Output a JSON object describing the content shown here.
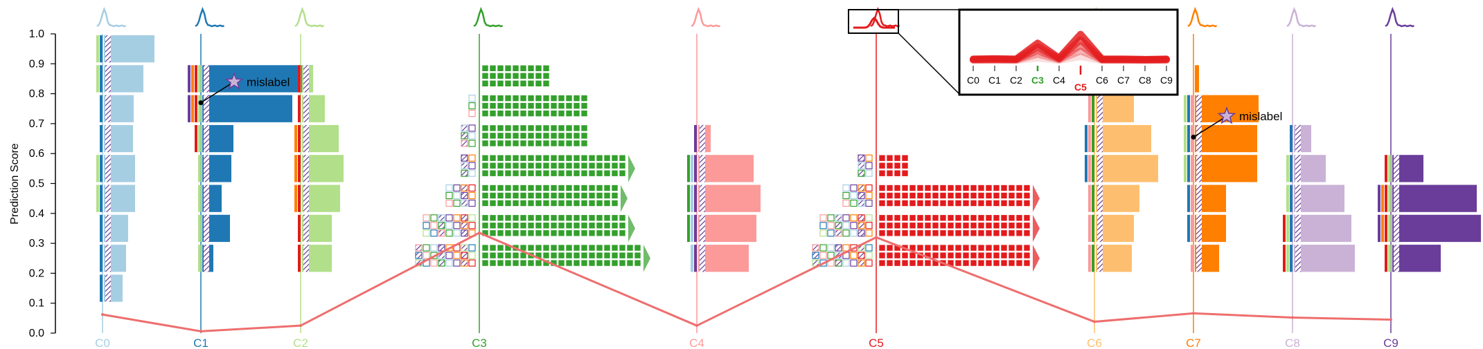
{
  "chart_data": {
    "type": "bar",
    "ylabel": "Prediction Score",
    "ylim": [
      0,
      1
    ],
    "yticks": [
      "0.0",
      "0.1",
      "0.2",
      "0.3",
      "0.4",
      "0.5",
      "0.6",
      "0.7",
      "0.8",
      "0.9",
      "1.0"
    ],
    "bins": [
      0.1,
      0.2,
      0.3,
      0.4,
      0.5,
      0.6,
      0.7,
      0.8,
      0.9
    ],
    "classes": [
      {
        "label": "C0",
        "color": "#a6cee3",
        "bins": [
          0.15,
          0.25,
          0.35,
          0.45,
          0.55,
          0.65,
          0.75,
          0.85,
          0.95
        ],
        "values": [
          27,
          32,
          35,
          45,
          45,
          42,
          43,
          57,
          73
        ],
        "line_score": 0.062
      },
      {
        "label": "C1",
        "color": "#1f78b4",
        "bins": [
          0.25,
          0.35,
          0.45,
          0.55,
          0.65,
          0.75,
          0.85
        ],
        "values": [
          16,
          40,
          28,
          42,
          45,
          130,
          160
        ],
        "line_score": 0.006
      },
      {
        "label": "C2",
        "color": "#b2df8a",
        "bins": [
          0.25,
          0.35,
          0.45,
          0.55,
          0.65,
          0.75,
          0.85
        ],
        "values": [
          43,
          43,
          55,
          60,
          53,
          33,
          16
        ],
        "line_score": 0.025
      },
      {
        "label": "C3",
        "color": "#33a02c",
        "bins": [
          0.25,
          0.35,
          0.45,
          0.55,
          0.65,
          0.75,
          0.85
        ],
        "values": [
          230,
          210,
          200,
          205,
          155,
          155,
          100
        ],
        "line_score": 0.335
      },
      {
        "label": "C4",
        "color": "#fb9a99",
        "bins": [
          0.25,
          0.35,
          0.45,
          0.55,
          0.65
        ],
        "values": [
          73,
          84,
          90,
          80,
          18
        ],
        "line_score": 0.025
      },
      {
        "label": "C5",
        "color": "#e31a1c",
        "bins": [
          0.25,
          0.35,
          0.45,
          0.55
        ],
        "values": [
          215,
          215,
          215,
          48
        ],
        "line_score": 0.32
      },
      {
        "label": "C6",
        "color": "#fdbf6f",
        "bins": [
          0.25,
          0.35,
          0.45,
          0.55,
          0.65,
          0.75
        ],
        "values": [
          52,
          55,
          63,
          90,
          80,
          55
        ],
        "line_score": 0.038
      },
      {
        "label": "C7",
        "color": "#ff7f00",
        "bins": [
          0.25,
          0.35,
          0.45,
          0.55,
          0.65,
          0.75,
          0.85
        ],
        "values": [
          35,
          45,
          45,
          90,
          90,
          92,
          6
        ],
        "line_score": 0.066
      },
      {
        "label": "C8",
        "color": "#cab2d6",
        "bins": [
          0.25,
          0.35,
          0.45,
          0.55,
          0.65
        ],
        "values": [
          88,
          83,
          73,
          46,
          25
        ],
        "line_score": 0.052
      },
      {
        "label": "C9",
        "color": "#6a3d9a",
        "bins": [
          0.25,
          0.35,
          0.45,
          0.55
        ],
        "values": [
          70,
          128,
          122,
          45
        ],
        "line_score": 0.045
      }
    ],
    "annotations": [
      {
        "text": "mislabel",
        "class": "C1",
        "score": 0.84
      },
      {
        "text": "mislabel",
        "class": "C7",
        "score": 0.725
      }
    ],
    "inset": {
      "tick_labels": [
        "C0",
        "C1",
        "C2",
        "C3",
        "C4",
        "C5",
        "C6",
        "C7",
        "C8",
        "C9"
      ],
      "highlight_true": "C3",
      "highlight_pred": "C5",
      "line_color": "#e31a1c",
      "profile": [
        0.05,
        0.06,
        0.05,
        0.5,
        0.08,
        0.75,
        0.05,
        0.05,
        0.04,
        0.05
      ]
    }
  }
}
